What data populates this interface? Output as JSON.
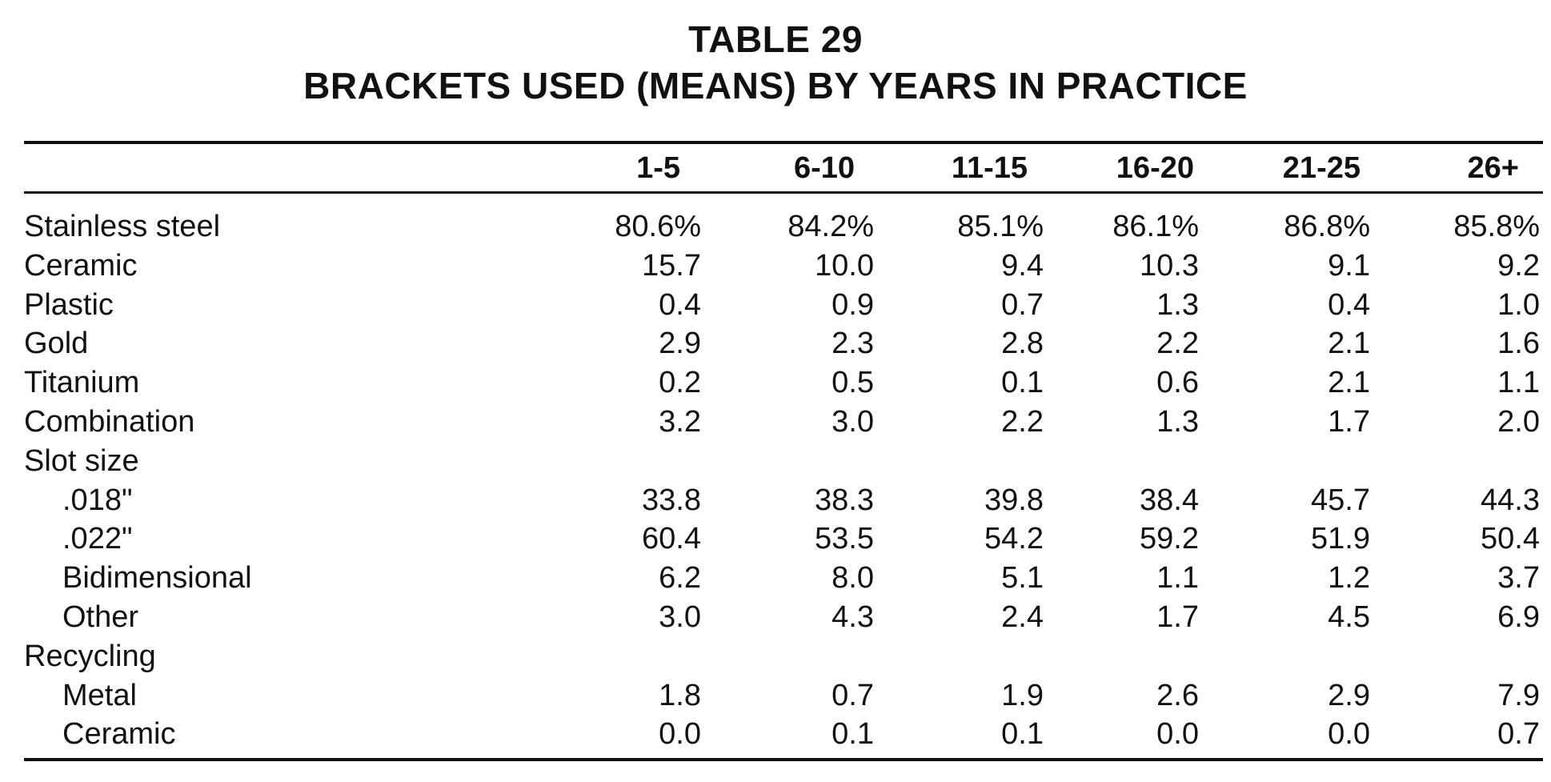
{
  "table": {
    "number": "TABLE 29",
    "title": "BRACKETS USED (MEANS) BY YEARS IN PRACTICE",
    "columns": [
      "1-5",
      "6-10",
      "11-15",
      "16-20",
      "21-25",
      "26+"
    ],
    "rows": [
      {
        "label": "Stainless steel",
        "indent": false,
        "values": [
          "80.6%",
          "84.2%",
          "85.1%",
          "86.1%",
          "86.8%",
          "85.8%"
        ]
      },
      {
        "label": "Ceramic",
        "indent": false,
        "values": [
          "15.7",
          "10.0",
          "9.4",
          "10.3",
          "9.1",
          "9.2"
        ]
      },
      {
        "label": "Plastic",
        "indent": false,
        "values": [
          "0.4",
          "0.9",
          "0.7",
          "1.3",
          "0.4",
          "1.0"
        ]
      },
      {
        "label": "Gold",
        "indent": false,
        "values": [
          "2.9",
          "2.3",
          "2.8",
          "2.2",
          "2.1",
          "1.6"
        ]
      },
      {
        "label": "Titanium",
        "indent": false,
        "values": [
          "0.2",
          "0.5",
          "0.1",
          "0.6",
          "2.1",
          "1.1"
        ]
      },
      {
        "label": "Combination",
        "indent": false,
        "values": [
          "3.2",
          "3.0",
          "2.2",
          "1.3",
          "1.7",
          "2.0"
        ]
      },
      {
        "label": "Slot size",
        "indent": false,
        "values": [
          "",
          "",
          "",
          "",
          "",
          ""
        ]
      },
      {
        "label": ".018\"",
        "indent": true,
        "values": [
          "33.8",
          "38.3",
          "39.8",
          "38.4",
          "45.7",
          "44.3"
        ]
      },
      {
        "label": ".022\"",
        "indent": true,
        "values": [
          "60.4",
          "53.5",
          "54.2",
          "59.2",
          "51.9",
          "50.4"
        ]
      },
      {
        "label": "Bidimensional",
        "indent": true,
        "values": [
          "6.2",
          "8.0",
          "5.1",
          "1.1",
          "1.2",
          "3.7"
        ]
      },
      {
        "label": "Other",
        "indent": true,
        "values": [
          "3.0",
          "4.3",
          "2.4",
          "1.7",
          "4.5",
          "6.9"
        ]
      },
      {
        "label": "Recycling",
        "indent": false,
        "values": [
          "",
          "",
          "",
          "",
          "",
          ""
        ]
      },
      {
        "label": "Metal",
        "indent": true,
        "values": [
          "1.8",
          "0.7",
          "1.9",
          "2.6",
          "2.9",
          "7.9"
        ]
      },
      {
        "label": "Ceramic",
        "indent": true,
        "values": [
          "0.0",
          "0.1",
          "0.1",
          "0.0",
          "0.0",
          "0.7"
        ]
      }
    ]
  }
}
